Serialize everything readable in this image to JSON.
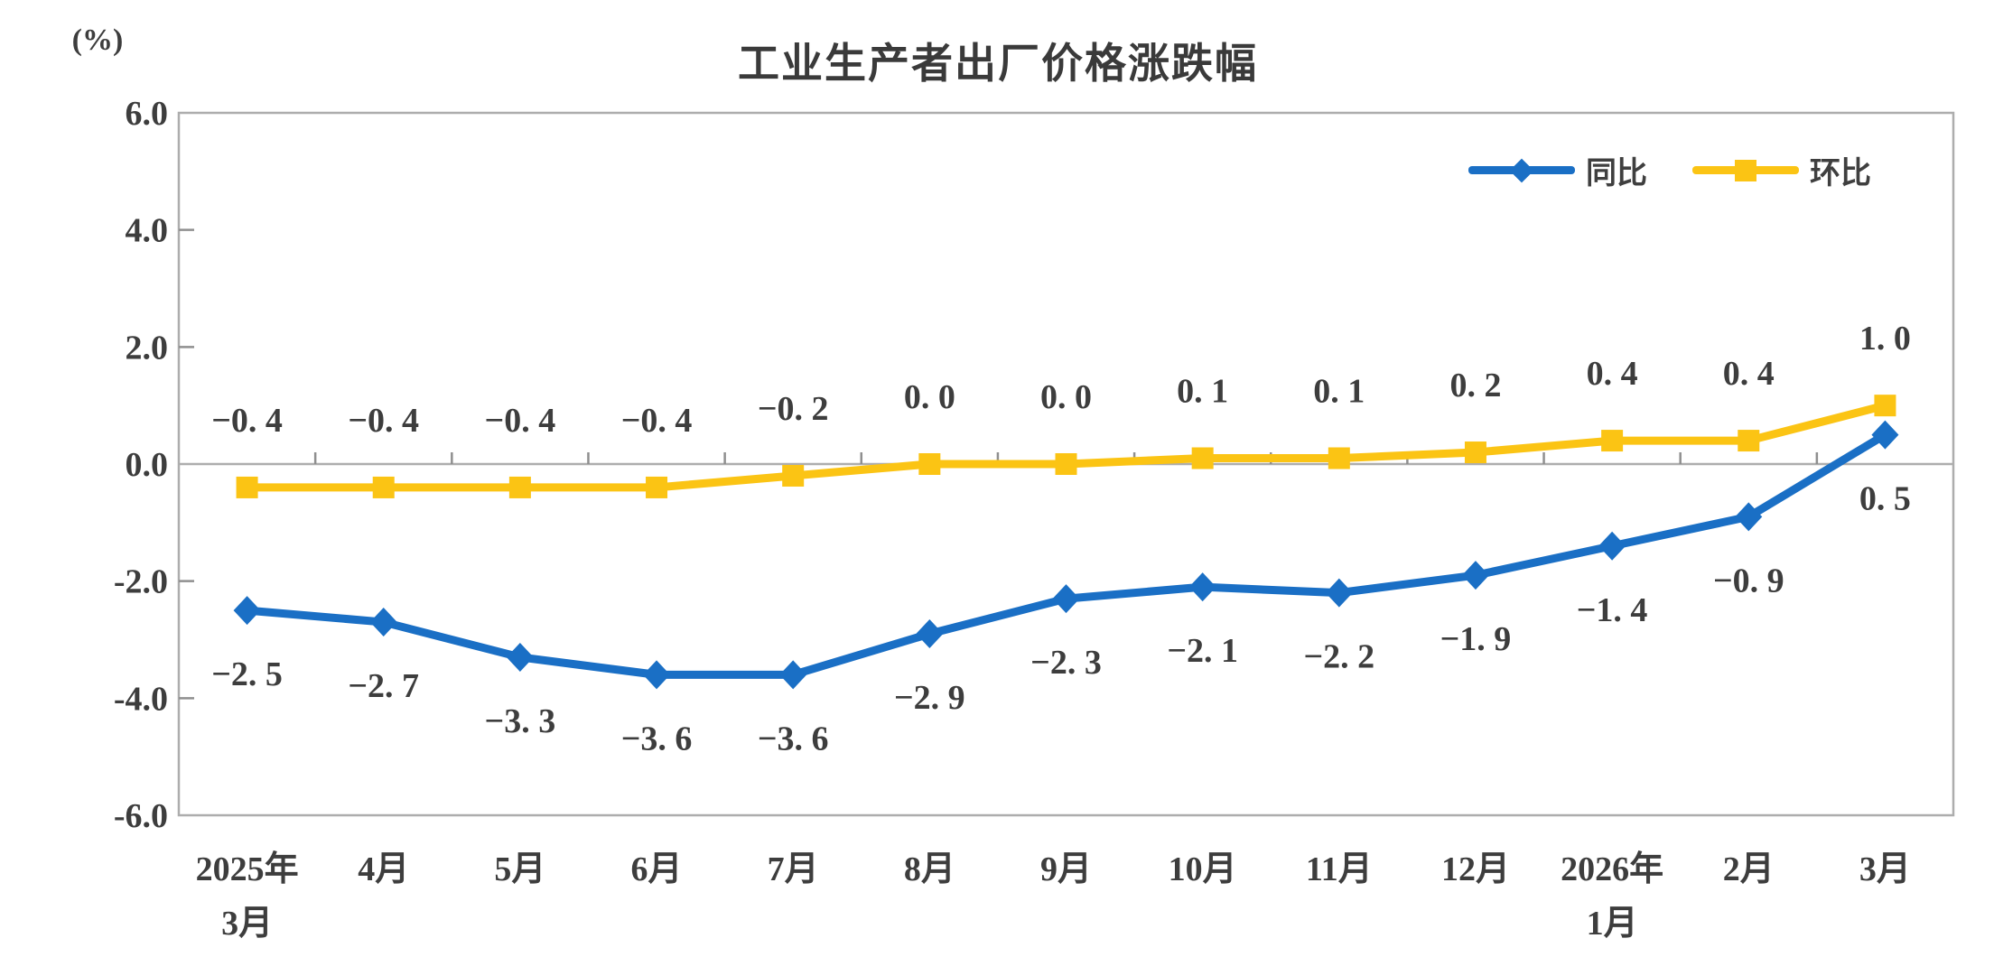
{
  "chart_data": {
    "type": "line",
    "title": "工业生产者出厂价格涨跌幅",
    "ylabel": "(%)",
    "xlabel": "",
    "ylim": [
      -6.0,
      6.0
    ],
    "ytick_step": 2.0,
    "yticks": [
      "6.0",
      "4.0",
      "2.0",
      "0.0",
      "-2.0",
      "-4.0",
      "-6.0"
    ],
    "grid": false,
    "legend_position": "top-right",
    "categories": [
      [
        "2025年",
        "3月"
      ],
      [
        "4月"
      ],
      [
        "5月"
      ],
      [
        "6月"
      ],
      [
        "7月"
      ],
      [
        "8月"
      ],
      [
        "9月"
      ],
      [
        "10月"
      ],
      [
        "11月"
      ],
      [
        "12月"
      ],
      [
        "2026年",
        "1月"
      ],
      [
        "2月"
      ],
      [
        "3月"
      ]
    ],
    "series": [
      {
        "id": "yoy",
        "name": "同比",
        "marker": "diamond",
        "color": "#1a6fc5",
        "values": [
          -2.5,
          -2.7,
          -3.3,
          -3.6,
          -3.6,
          -2.9,
          -2.3,
          -2.1,
          -2.2,
          -1.9,
          -1.4,
          -0.9,
          0.5
        ],
        "labels": [
          "−2. 5",
          "−2. 7",
          "−3. 3",
          "−3. 6",
          "−3. 6",
          "−2. 9",
          "−2. 3",
          "−2. 1",
          "−2. 2",
          "−1. 9",
          "−1. 4",
          "−0. 9",
          "0. 5"
        ]
      },
      {
        "id": "mom",
        "name": "环比",
        "marker": "square",
        "color": "#fbc414",
        "values": [
          -0.4,
          -0.4,
          -0.4,
          -0.4,
          -0.2,
          0.0,
          0.0,
          0.1,
          0.1,
          0.2,
          0.4,
          0.4,
          1.0
        ],
        "labels": [
          "−0. 4",
          "−0. 4",
          "−0. 4",
          "−0. 4",
          "−0. 2",
          "0. 0",
          "0. 0",
          "0. 1",
          "0. 1",
          "0. 2",
          "0. 4",
          "0. 4",
          "1. 0"
        ]
      }
    ],
    "axis_color": "#adadad",
    "tick_color": "#8f8f8f",
    "text_color": "#3d3d3d",
    "title_color": "#3a3a3a"
  }
}
